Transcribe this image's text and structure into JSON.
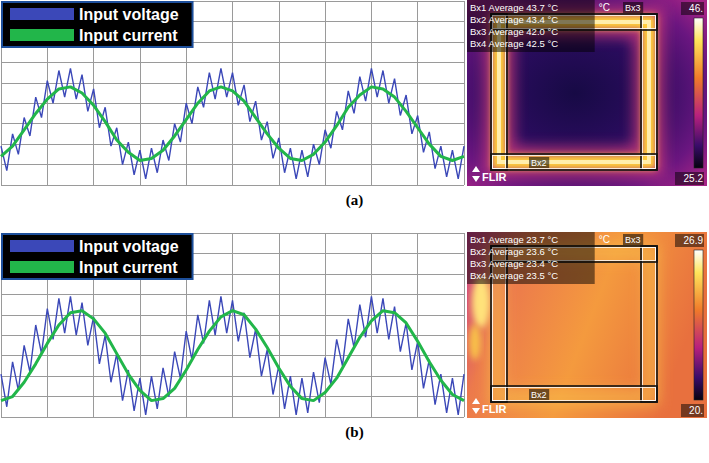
{
  "chart_data": [
    {
      "type": "line",
      "legend": "upper left",
      "grid": true,
      "tick_labels": false,
      "xlim": [
        0,
        10
      ],
      "ylim": [
        -3,
        6
      ],
      "xticks": [
        0,
        1,
        2,
        3,
        4,
        5,
        6,
        7,
        8,
        9,
        10
      ],
      "yticks": [
        -3,
        -2,
        -1,
        0,
        1,
        2,
        3,
        4,
        5,
        6
      ],
      "series": [
        {
          "name": "Input voltage",
          "color": "#3b48b8",
          "x": [
            0,
            0.125,
            0.25,
            0.375,
            0.5,
            0.625,
            0.75,
            0.875,
            1,
            1.125,
            1.25,
            1.375,
            1.5,
            1.625,
            1.75,
            1.875,
            2,
            2.125,
            2.25,
            2.375,
            2.5,
            2.625,
            2.75,
            2.875,
            3,
            3.125,
            3.25,
            3.375,
            3.5,
            3.625,
            3.75,
            3.875,
            4,
            4.125,
            4.25,
            4.375,
            4.5,
            4.625,
            4.75,
            4.875,
            5,
            5.125,
            5.25,
            5.375,
            5.5,
            5.625,
            5.75,
            5.875,
            6,
            6.125,
            6.25,
            6.375,
            6.5,
            6.625,
            6.75,
            6.875,
            7,
            7.125,
            7.25,
            7.375,
            7.5,
            7.625,
            7.75,
            7.875,
            8,
            8.125,
            8.25,
            8.375,
            8.5,
            8.625,
            8.75,
            8.875,
            9,
            9.125,
            9.25,
            9.375,
            9.5,
            9.625,
            9.75,
            9.875,
            10
          ],
          "values": [
            -1.1,
            -2.3,
            -0.5,
            -1.5,
            0.3,
            -0.6,
            1.3,
            0.3,
            2.1,
            1.0,
            2.6,
            1.3,
            2.7,
            1.2,
            2.4,
            0.6,
            1.7,
            -0.2,
            0.8,
            -1.1,
            -0.2,
            -2.0,
            -0.9,
            -2.5,
            -1.3,
            -2.7,
            -1.2,
            -2.4,
            -0.8,
            -1.8,
            0.0,
            -0.9,
            1.0,
            0.0,
            1.8,
            0.8,
            2.5,
            1.2,
            2.7,
            1.3,
            2.5,
            0.9,
            1.9,
            0.1,
            1.1,
            -0.8,
            0.1,
            -1.7,
            -0.7,
            -2.4,
            -1.2,
            -2.7,
            -1.3,
            -2.6,
            -1.0,
            -2.0,
            -0.3,
            -1.2,
            0.6,
            -0.3,
            1.6,
            0.5,
            2.3,
            1.1,
            2.7,
            1.3,
            2.6,
            1.0,
            2.2,
            0.4,
            1.4,
            -0.5,
            0.4,
            -1.4,
            -0.4,
            -2.2,
            -1.1,
            -2.6,
            -1.3,
            -2.7,
            -1.1
          ]
        },
        {
          "name": "Input current",
          "color": "#22b64a",
          "x": [
            0,
            0.25,
            0.5,
            0.75,
            1,
            1.25,
            1.5,
            1.75,
            2,
            2.25,
            2.5,
            2.75,
            3,
            3.25,
            3.5,
            3.75,
            4,
            4.25,
            4.5,
            4.75,
            5,
            5.25,
            5.5,
            5.75,
            6,
            6.25,
            6.5,
            6.75,
            7,
            7.25,
            7.5,
            7.75,
            8,
            8.25,
            8.5,
            8.75,
            9,
            9.25,
            9.5,
            9.75,
            10
          ],
          "values": [
            -1.6,
            -1.1,
            -0.3,
            0.5,
            1.2,
            1.7,
            1.8,
            1.5,
            0.9,
            0.1,
            -0.8,
            -1.4,
            -1.8,
            -1.7,
            -1.3,
            -0.6,
            0.2,
            1.0,
            1.6,
            1.8,
            1.6,
            1.1,
            0.3,
            -0.5,
            -1.2,
            -1.7,
            -1.8,
            -1.5,
            -0.9,
            -0.1,
            0.8,
            1.4,
            1.8,
            1.7,
            1.3,
            0.6,
            -0.2,
            -1.0,
            -1.6,
            -1.8,
            -1.6
          ]
        }
      ]
    },
    {
      "type": "line",
      "legend": "upper left",
      "grid": true,
      "tick_labels": false,
      "xlim": [
        0,
        10
      ],
      "ylim": [
        -3,
        6
      ],
      "xticks": [
        0,
        1,
        2,
        3,
        4,
        5,
        6,
        7,
        8,
        9,
        10
      ],
      "yticks": [
        -3,
        -2,
        -1,
        0,
        1,
        2,
        3,
        4,
        5,
        6
      ],
      "series": [
        {
          "name": "Input voltage",
          "color": "#3b48b8",
          "x": [
            0,
            0.125,
            0.25,
            0.375,
            0.5,
            0.625,
            0.75,
            0.875,
            1,
            1.125,
            1.25,
            1.375,
            1.5,
            1.625,
            1.75,
            1.875,
            2,
            2.125,
            2.25,
            2.375,
            2.5,
            2.625,
            2.75,
            2.875,
            3,
            3.125,
            3.25,
            3.375,
            3.5,
            3.625,
            3.75,
            3.875,
            4,
            4.125,
            4.25,
            4.375,
            4.5,
            4.625,
            4.75,
            4.875,
            5,
            5.125,
            5.25,
            5.375,
            5.5,
            5.625,
            5.75,
            5.875,
            6,
            6.125,
            6.25,
            6.375,
            6.5,
            6.625,
            6.75,
            6.875,
            7,
            7.125,
            7.25,
            7.375,
            7.5,
            7.625,
            7.75,
            7.875,
            8,
            8.125,
            8.25,
            8.375,
            8.5,
            8.625,
            8.75,
            8.875,
            9,
            9.125,
            9.25,
            9.375,
            9.5,
            9.625,
            9.75,
            9.875,
            10
          ],
          "values": [
            -0.9,
            -2.5,
            -0.3,
            -1.7,
            0.5,
            -0.8,
            1.5,
            0.1,
            2.3,
            0.8,
            2.8,
            1.1,
            2.9,
            1.0,
            2.6,
            0.5,
            1.9,
            -0.4,
            1.0,
            -1.3,
            0.1,
            -2.2,
            -0.7,
            -2.7,
            -1.1,
            -2.9,
            -1.0,
            -2.6,
            -0.6,
            -2.0,
            0.2,
            -1.1,
            1.2,
            -0.2,
            2.0,
            0.6,
            2.7,
            1.0,
            2.9,
            1.1,
            2.7,
            0.7,
            2.1,
            -0.1,
            1.3,
            -1.0,
            0.3,
            -1.9,
            -0.5,
            -2.6,
            -1.0,
            -2.9,
            -1.1,
            -2.8,
            -0.8,
            -2.3,
            -0.1,
            -1.4,
            0.8,
            -0.5,
            1.8,
            0.4,
            2.5,
            0.9,
            2.9,
            1.1,
            2.8,
            0.8,
            2.4,
            0.2,
            1.6,
            -0.7,
            0.7,
            -1.6,
            -0.2,
            -2.4,
            -0.9,
            -2.8,
            -1.1,
            -2.9,
            -0.9
          ]
        },
        {
          "name": "Input current",
          "color": "#22b64a",
          "x": [
            0,
            0.25,
            0.5,
            0.75,
            1,
            1.25,
            1.5,
            1.75,
            2,
            2.25,
            2.5,
            2.75,
            3,
            3.25,
            3.5,
            3.75,
            4,
            4.25,
            4.5,
            4.75,
            5,
            5.25,
            5.5,
            5.75,
            6,
            6.25,
            6.5,
            6.75,
            7,
            7.25,
            7.5,
            7.75,
            8,
            8.25,
            8.5,
            8.75,
            9,
            9.25,
            9.5,
            9.75,
            10
          ],
          "values": [
            -2.2,
            -2.0,
            -1.3,
            -0.4,
            0.6,
            1.5,
            2.1,
            2.2,
            1.8,
            1.1,
            0.1,
            -0.9,
            -1.7,
            -2.2,
            -2.1,
            -1.6,
            -0.7,
            0.3,
            1.2,
            1.9,
            2.2,
            2.0,
            1.3,
            0.4,
            -0.6,
            -1.5,
            -2.1,
            -2.2,
            -1.8,
            -1.1,
            -0.1,
            0.9,
            1.7,
            2.2,
            2.1,
            1.6,
            0.7,
            -0.3,
            -1.2,
            -1.9,
            -2.2
          ]
        }
      ]
    }
  ],
  "panel_labels": [
    "(a)",
    "(b)"
  ],
  "thermal_images": [
    {
      "readings": [
        {
          "box": "Bx1",
          "stat": "Average",
          "value": "43.7 °C"
        },
        {
          "box": "Bx2",
          "stat": "Average",
          "value": "43.4 °C"
        },
        {
          "box": "Bx3",
          "stat": "Average",
          "value": "42.0 °C"
        },
        {
          "box": "Bx4",
          "stat": "Average",
          "value": "42.5 °C"
        }
      ],
      "unit": "°C",
      "box_tags": [
        "Bx3",
        "Bx2"
      ],
      "scale_max": "46.",
      "scale_min": "25.2",
      "logo": "FLIR"
    },
    {
      "readings": [
        {
          "box": "Bx1",
          "stat": "Average",
          "value": "23.7 °C"
        },
        {
          "box": "Bx2",
          "stat": "Average",
          "value": "23.6 °C"
        },
        {
          "box": "Bx3",
          "stat": "Average",
          "value": "23.4 °C"
        },
        {
          "box": "Bx4",
          "stat": "Average",
          "value": "23.5 °C"
        }
      ],
      "unit": "°C",
      "box_tags": [
        "Bx3",
        "Bx2"
      ],
      "scale_max": "26.9",
      "scale_min": "20.",
      "logo": "FLIR"
    }
  ]
}
